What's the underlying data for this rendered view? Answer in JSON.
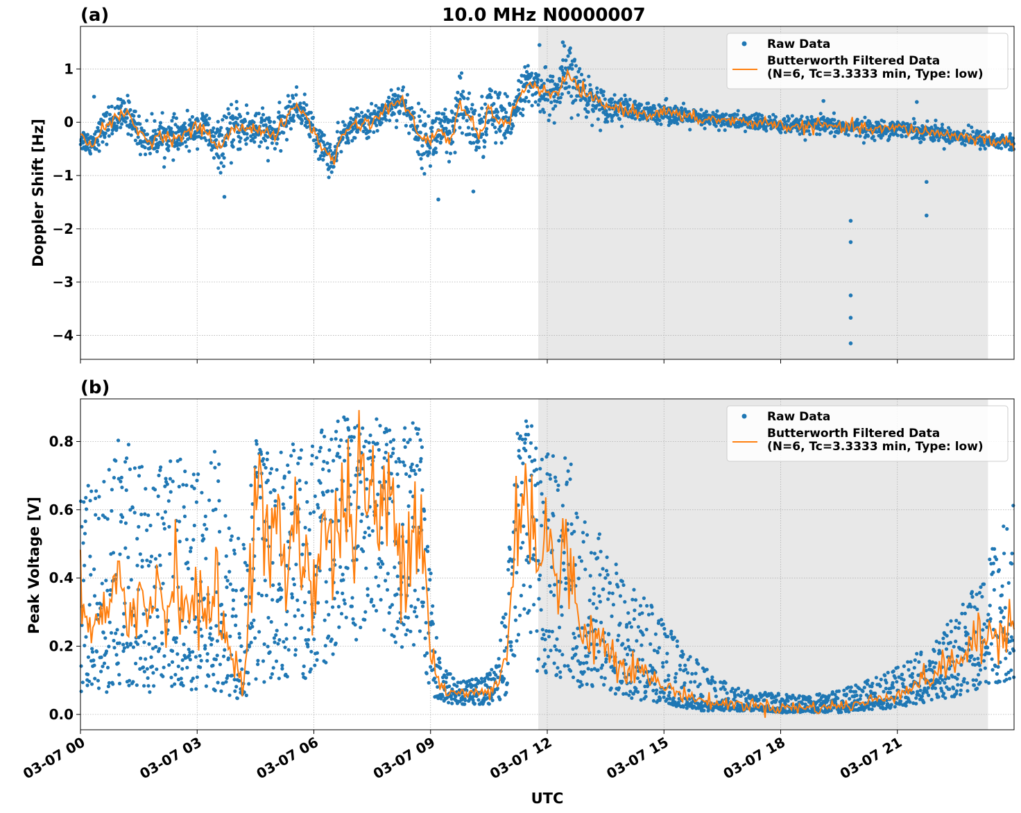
{
  "figure": {
    "title": "10.0 MHz N0000007",
    "xlabel": "UTC"
  },
  "chart_data": [
    {
      "type": "scatter",
      "panel_label": "(a)",
      "ylabel": "Doppler Shift [Hz]",
      "x_unit": "hours since 03-07 00:00 UTC",
      "xlim": [
        0,
        24
      ],
      "ylim": [
        -4.45,
        1.8
      ],
      "xticks": [
        0,
        3,
        6,
        9,
        12,
        15,
        18,
        21
      ],
      "xtick_labels": [
        "03-07 00",
        "03-07 03",
        "03-07 06",
        "03-07 09",
        "03-07 12",
        "03-07 15",
        "03-07 18",
        "03-07 21"
      ],
      "yticks": [
        1,
        0,
        -1,
        -2,
        -3,
        -4
      ],
      "ytick_labels": [
        "1",
        "0",
        "−1",
        "−2",
        "−3",
        "−4"
      ],
      "grid": true,
      "shaded_region": {
        "x_start": 11.77,
        "x_end": 23.33
      },
      "legend_position": "top-right",
      "legend": [
        {
          "label": "Raw Data",
          "marker": "dot",
          "color": "#1f77b4"
        },
        {
          "label": "Butterworth Filtered Data\n(N=6, Tc=3.3333 min, Type: low)",
          "marker": "line",
          "color": "#ff7f0e"
        }
      ],
      "series": [
        {
          "name": "Butterworth Filtered Data (N=6, Tc=3.3333 min, Type: low)",
          "color": "#ff7f0e",
          "x": [
            0,
            0.25,
            0.5,
            0.75,
            1.0,
            1.25,
            1.5,
            1.75,
            2.0,
            2.5,
            3.0,
            3.25,
            3.5,
            3.75,
            4.0,
            4.5,
            5.0,
            5.25,
            5.5,
            5.75,
            6.0,
            6.25,
            6.5,
            6.75,
            7.0,
            7.5,
            8.0,
            8.25,
            8.5,
            8.75,
            9.0,
            9.25,
            9.5,
            9.75,
            10.0,
            10.25,
            10.5,
            10.75,
            11.0,
            11.25,
            11.5,
            11.75,
            12.0,
            12.25,
            12.5,
            12.75,
            13.0,
            13.5,
            14.0,
            14.5,
            15.0,
            15.5,
            16.0,
            16.5,
            17.0,
            17.5,
            18.0,
            18.5,
            19.0,
            19.5,
            20.0,
            20.5,
            21.0,
            21.5,
            22.0,
            22.5,
            23.0,
            23.5,
            24.0
          ],
          "y": [
            -0.3,
            -0.4,
            -0.2,
            0.0,
            0.1,
            0.15,
            -0.2,
            -0.35,
            -0.25,
            -0.3,
            -0.1,
            -0.15,
            -0.5,
            -0.3,
            -0.1,
            -0.1,
            -0.25,
            0.0,
            0.3,
            0.2,
            -0.2,
            -0.5,
            -0.75,
            -0.2,
            -0.05,
            0.0,
            0.35,
            0.4,
            0.1,
            -0.3,
            -0.35,
            -0.1,
            -0.4,
            0.3,
            0.1,
            -0.3,
            0.25,
            0.05,
            -0.1,
            0.5,
            0.7,
            0.65,
            0.55,
            0.5,
            0.9,
            0.7,
            0.5,
            0.3,
            0.25,
            0.15,
            0.2,
            0.1,
            0.05,
            0.05,
            0.0,
            0.0,
            -0.05,
            -0.1,
            -0.05,
            -0.1,
            -0.1,
            -0.15,
            -0.1,
            -0.15,
            -0.2,
            -0.25,
            -0.3,
            -0.35,
            -0.4
          ]
        },
        {
          "name": "Raw Data",
          "color": "#1f77b4",
          "description": "dense scatter around the filtered trace, band ~±0.3 Hz, wider (±0.5) near 03-07 09–12",
          "band_halfwidth": [
            0.2,
            0.2,
            0.25,
            0.3,
            0.3,
            0.3,
            0.3,
            0.3,
            0.3,
            0.3,
            0.25,
            0.35,
            0.4,
            0.4,
            0.4,
            0.4,
            0.3,
            0.3,
            0.3,
            0.25,
            0.3,
            0.3,
            0.3,
            0.25,
            0.25,
            0.25,
            0.3,
            0.3,
            0.35,
            0.45,
            0.45,
            0.5,
            0.5,
            0.55,
            0.5,
            0.55,
            0.5,
            0.5,
            0.45,
            0.3,
            0.35,
            0.35,
            0.4,
            0.4,
            0.55,
            0.45,
            0.35,
            0.25,
            0.2,
            0.18,
            0.18,
            0.17,
            0.15,
            0.15,
            0.15,
            0.15,
            0.15,
            0.15,
            0.15,
            0.15,
            0.15,
            0.15,
            0.15,
            0.15,
            0.15,
            0.15,
            0.15,
            0.15,
            0.15
          ],
          "outliers": [
            {
              "x": 19.8,
              "y": -1.85
            },
            {
              "x": 19.8,
              "y": -2.25
            },
            {
              "x": 19.8,
              "y": -3.25
            },
            {
              "x": 19.8,
              "y": -3.67
            },
            {
              "x": 19.8,
              "y": -4.15
            },
            {
              "x": 21.75,
              "y": -1.75
            },
            {
              "x": 21.75,
              "y": -1.12
            },
            {
              "x": 3.7,
              "y": -1.4
            },
            {
              "x": 0.35,
              "y": 0.48
            },
            {
              "x": 9.2,
              "y": -1.45
            },
            {
              "x": 10.1,
              "y": -1.3
            },
            {
              "x": 12.4,
              "y": 1.5
            },
            {
              "x": 11.8,
              "y": 1.45
            },
            {
              "x": 21.5,
              "y": 0.38
            },
            {
              "x": 19.1,
              "y": 0.4
            }
          ]
        }
      ]
    },
    {
      "type": "scatter",
      "panel_label": "(b)",
      "ylabel": "Peak Voltage [V]",
      "x_unit": "hours since 03-07 00:00 UTC",
      "xlim": [
        0,
        24
      ],
      "ylim": [
        -0.045,
        0.925
      ],
      "xticks": [
        0,
        3,
        6,
        9,
        12,
        15,
        18,
        21
      ],
      "xtick_labels": [
        "03-07 00",
        "03-07 03",
        "03-07 06",
        "03-07 09",
        "03-07 12",
        "03-07 15",
        "03-07 18",
        "03-07 21"
      ],
      "yticks": [
        0.0,
        0.2,
        0.4,
        0.6,
        0.8
      ],
      "ytick_labels": [
        "0.0",
        "0.2",
        "0.4",
        "0.6",
        "0.8"
      ],
      "grid": true,
      "shaded_region": {
        "x_start": 11.77,
        "x_end": 23.33
      },
      "legend_position": "top-right",
      "legend": [
        {
          "label": "Raw Data",
          "marker": "dot",
          "color": "#1f77b4"
        },
        {
          "label": "Butterworth Filtered Data\n(N=6, Tc=3.3333 min, Type: low)",
          "marker": "line",
          "color": "#ff7f0e"
        }
      ],
      "series": [
        {
          "name": "Butterworth Filtered Data (N=6, Tc=3.3333 min, Type: low)",
          "color": "#ff7f0e",
          "x": [
            0,
            0.25,
            0.5,
            0.75,
            1.0,
            1.25,
            1.5,
            1.75,
            2.0,
            2.25,
            2.5,
            2.75,
            3.0,
            3.25,
            3.5,
            3.75,
            4.0,
            4.25,
            4.5,
            4.75,
            5.0,
            5.25,
            5.5,
            5.75,
            6.0,
            6.25,
            6.5,
            6.75,
            7.0,
            7.25,
            7.5,
            7.75,
            8.0,
            8.25,
            8.5,
            8.75,
            9.0,
            9.25,
            9.5,
            9.75,
            10.0,
            10.25,
            10.5,
            10.75,
            11.0,
            11.25,
            11.5,
            11.75,
            12.0,
            12.25,
            12.5,
            12.75,
            13.0,
            13.5,
            14.0,
            14.5,
            15.0,
            15.5,
            16.0,
            16.5,
            17.0,
            17.5,
            18.0,
            18.5,
            19.0,
            19.5,
            20.0,
            20.5,
            21.0,
            21.5,
            22.0,
            22.5,
            23.0,
            23.5,
            24.0
          ],
          "y": [
            0.38,
            0.2,
            0.3,
            0.25,
            0.45,
            0.3,
            0.35,
            0.28,
            0.4,
            0.3,
            0.45,
            0.3,
            0.35,
            0.25,
            0.4,
            0.2,
            0.15,
            0.12,
            0.7,
            0.5,
            0.55,
            0.4,
            0.6,
            0.45,
            0.4,
            0.55,
            0.45,
            0.65,
            0.55,
            0.7,
            0.6,
            0.58,
            0.62,
            0.5,
            0.55,
            0.6,
            0.2,
            0.08,
            0.06,
            0.06,
            0.06,
            0.07,
            0.06,
            0.1,
            0.2,
            0.65,
            0.7,
            0.45,
            0.55,
            0.35,
            0.5,
            0.3,
            0.25,
            0.2,
            0.15,
            0.12,
            0.08,
            0.06,
            0.04,
            0.03,
            0.03,
            0.025,
            0.02,
            0.02,
            0.02,
            0.025,
            0.03,
            0.045,
            0.06,
            0.09,
            0.12,
            0.16,
            0.2,
            0.24,
            0.28
          ]
        },
        {
          "name": "Raw Data",
          "color": "#1f77b4",
          "band_low": [
            0.04,
            0.06,
            0.07,
            0.06,
            0.06,
            0.07,
            0.08,
            0.06,
            0.07,
            0.08,
            0.08,
            0.07,
            0.07,
            0.06,
            0.07,
            0.05,
            0.04,
            0.05,
            0.1,
            0.08,
            0.09,
            0.1,
            0.12,
            0.1,
            0.1,
            0.12,
            0.13,
            0.18,
            0.2,
            0.25,
            0.28,
            0.25,
            0.2,
            0.18,
            0.2,
            0.2,
            0.06,
            0.04,
            0.03,
            0.03,
            0.03,
            0.03,
            0.03,
            0.04,
            0.06,
            0.2,
            0.25,
            0.12,
            0.12,
            0.1,
            0.12,
            0.08,
            0.08,
            0.06,
            0.05,
            0.04,
            0.03,
            0.02,
            0.01,
            0.01,
            0.01,
            0.01,
            0.005,
            0.005,
            0.005,
            0.005,
            0.01,
            0.015,
            0.02,
            0.03,
            0.04,
            0.05,
            0.07,
            0.09,
            0.1
          ],
          "band_high": [
            0.78,
            0.72,
            0.7,
            0.74,
            0.82,
            0.8,
            0.75,
            0.7,
            0.78,
            0.75,
            0.82,
            0.78,
            0.75,
            0.72,
            0.8,
            0.6,
            0.55,
            0.5,
            0.82,
            0.78,
            0.8,
            0.76,
            0.8,
            0.78,
            0.8,
            0.86,
            0.88,
            0.88,
            0.87,
            0.88,
            0.88,
            0.87,
            0.86,
            0.85,
            0.86,
            0.86,
            0.45,
            0.14,
            0.12,
            0.1,
            0.1,
            0.11,
            0.12,
            0.18,
            0.45,
            0.86,
            0.88,
            0.8,
            0.82,
            0.72,
            0.78,
            0.68,
            0.6,
            0.5,
            0.42,
            0.35,
            0.28,
            0.2,
            0.15,
            0.1,
            0.08,
            0.07,
            0.06,
            0.06,
            0.06,
            0.07,
            0.09,
            0.11,
            0.14,
            0.18,
            0.22,
            0.3,
            0.38,
            0.5,
            0.62
          ]
        }
      ]
    }
  ]
}
